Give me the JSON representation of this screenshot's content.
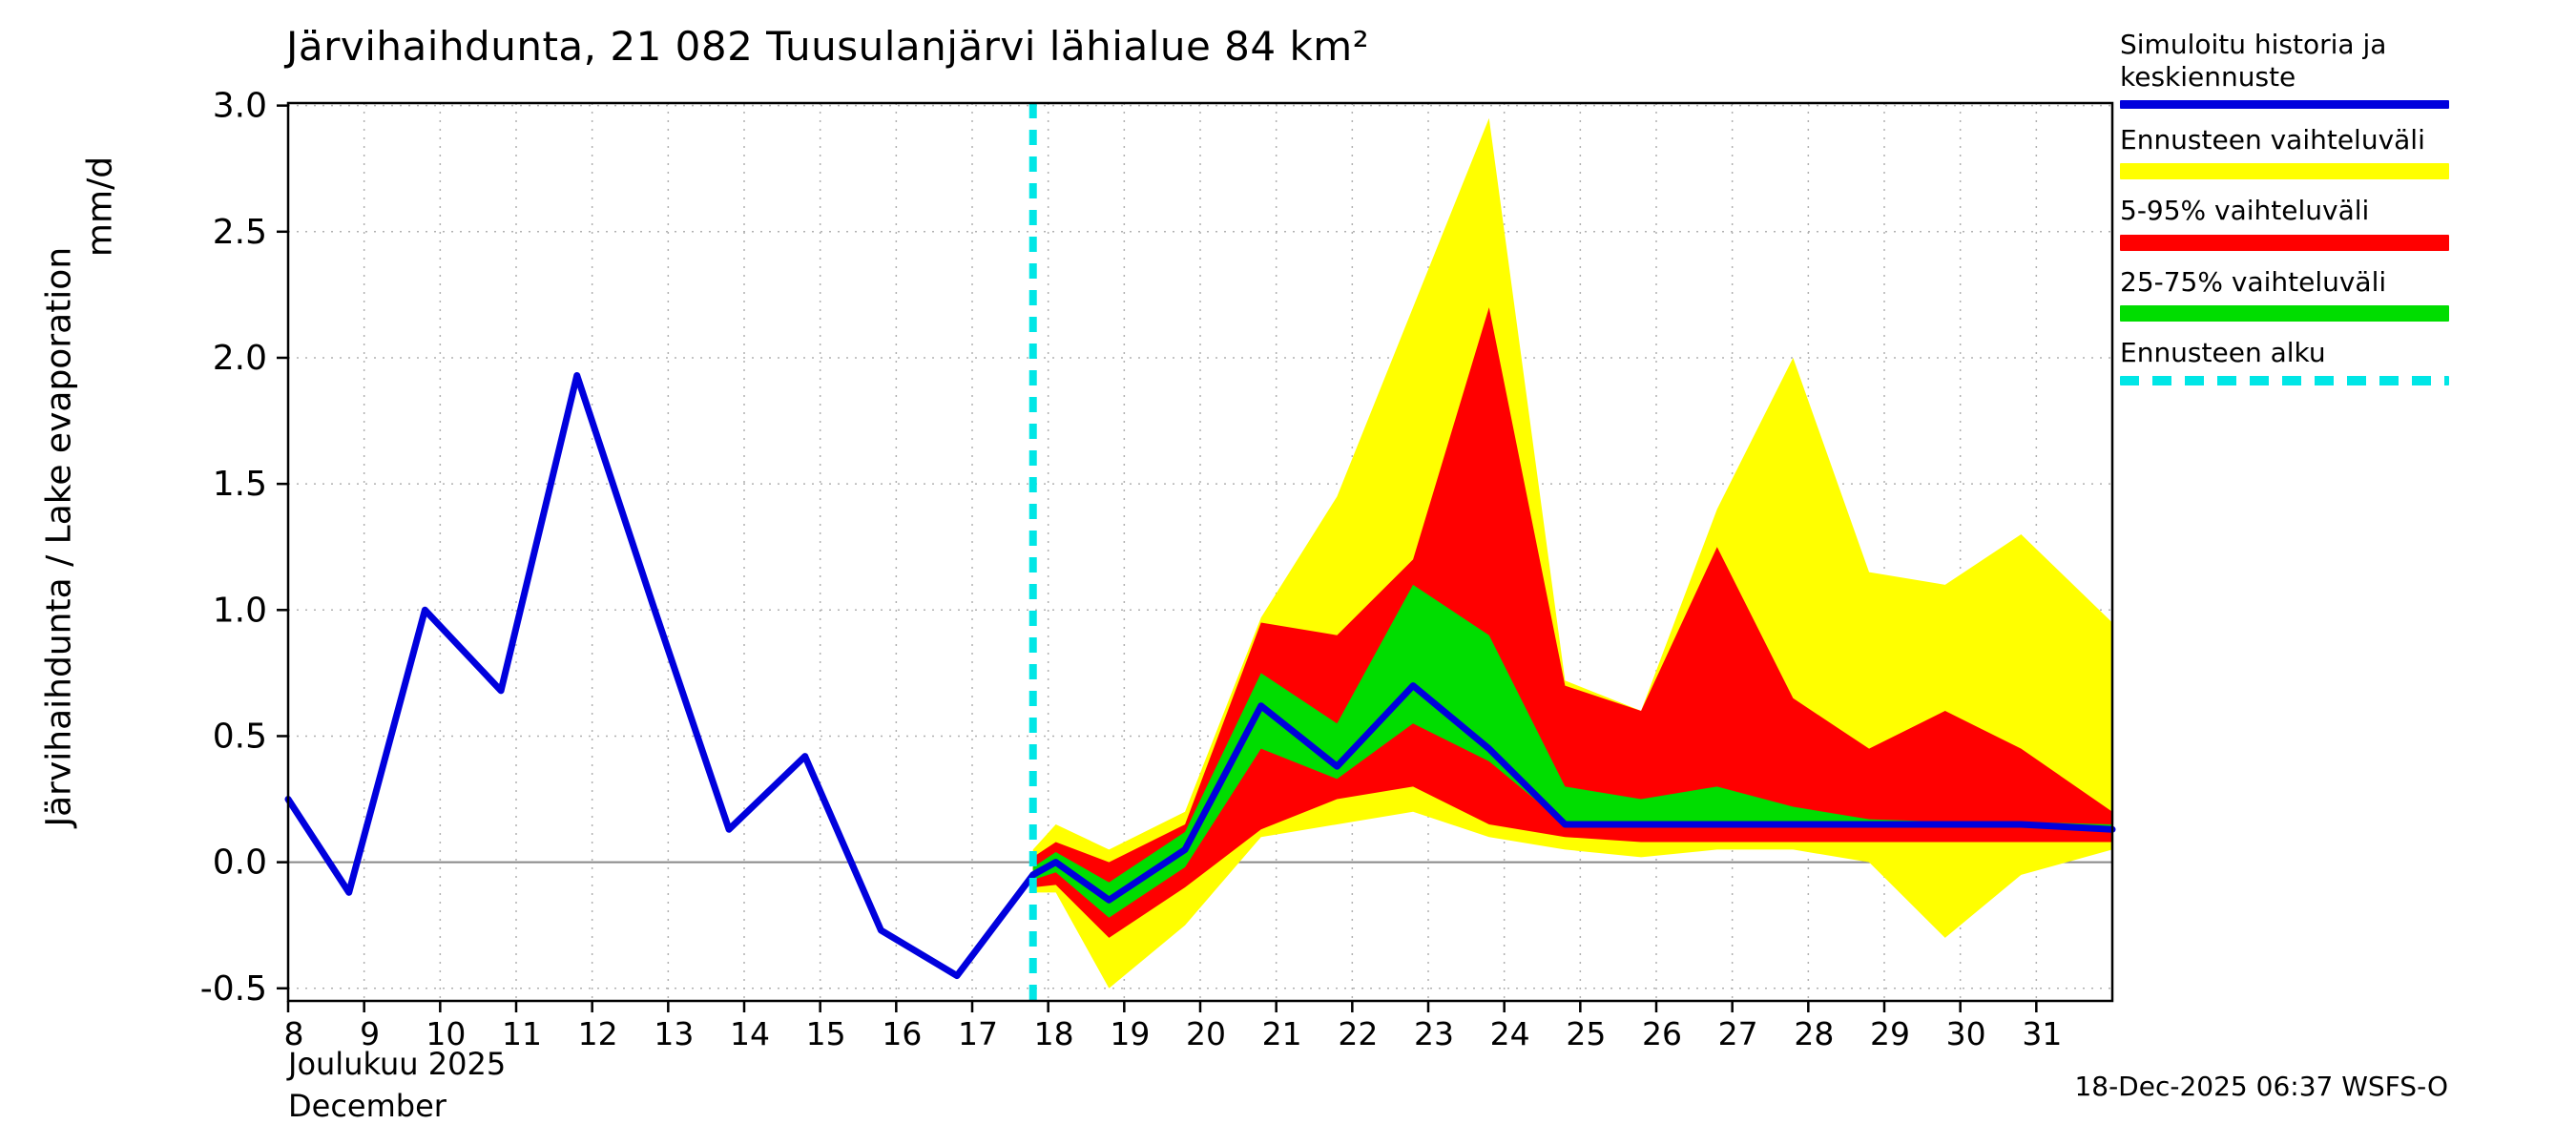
{
  "title": "Järvihaihdunta, 21 082 Tuusulanjärvi lähialue 84 km²",
  "y_axis_label": "Järvihaihdunta / Lake evaporation",
  "y_axis_unit": "mm/d",
  "footer": {
    "month_fi": "Joulukuu 2025",
    "month_en": "December",
    "timestamp": "18-Dec-2025 06:37 WSFS-O"
  },
  "legend": [
    {
      "label": "Simuloitu historia ja keskiennuste",
      "color": "#0000dd",
      "style": "line"
    },
    {
      "label": "Ennusteen vaihteluväli",
      "color": "#ffff00",
      "style": "band"
    },
    {
      "label": "5-95% vaihteluväli",
      "color": "#ff0000",
      "style": "band"
    },
    {
      "label": "25-75% vaihteluväli",
      "color": "#00dd00",
      "style": "band"
    },
    {
      "label": "Ennusteen alku",
      "color": "#00e6e6",
      "style": "dashed"
    }
  ],
  "chart_data": {
    "type": "line",
    "title": "Järvihaihdunta, 21 082 Tuusulanjärvi lähialue 84 km²",
    "xlabel": "Joulukuu 2025 / December",
    "ylabel": "Järvihaihdunta / Lake evaporation (mm/d)",
    "xlim": [
      8,
      32
    ],
    "ylim": [
      -0.5,
      3.0
    ],
    "x_ticks": [
      8,
      9,
      10,
      11,
      12,
      13,
      14,
      15,
      16,
      17,
      18,
      19,
      20,
      21,
      22,
      23,
      24,
      25,
      26,
      27,
      28,
      29,
      30,
      31
    ],
    "y_ticks": [
      -0.5,
      0.0,
      0.5,
      1.0,
      1.5,
      2.0,
      2.5,
      3.0
    ],
    "grid": true,
    "legend_position": "top-right",
    "forecast_start_x": 17.8,
    "colors": {
      "history_line": "#0000dd",
      "range_band": "#ffff00",
      "p5_95_band": "#ff0000",
      "p25_75_band": "#00dd00",
      "forecast_start_line": "#00e6e6",
      "grid": "#b0b0b0",
      "zero_line": "#888888"
    },
    "series": [
      {
        "name": "Ennusteen vaihteluväli",
        "type": "band",
        "color": "#ffff00",
        "x": [
          17.8,
          18.1,
          18.8,
          19.8,
          20.8,
          21.8,
          22.8,
          23.8,
          24.8,
          25.8,
          26.8,
          27.8,
          28.8,
          29.8,
          30.8,
          32.0
        ],
        "lower": [
          -0.12,
          -0.12,
          -0.5,
          -0.25,
          0.1,
          0.15,
          0.2,
          0.1,
          0.05,
          0.02,
          0.05,
          0.05,
          0.0,
          -0.3,
          -0.05,
          0.05
        ],
        "upper": [
          0.05,
          0.15,
          0.05,
          0.2,
          0.97,
          1.45,
          2.2,
          2.95,
          0.72,
          0.6,
          1.4,
          2.0,
          1.15,
          1.1,
          1.3,
          0.95
        ]
      },
      {
        "name": "5-95% vaihteluväli",
        "type": "band",
        "color": "#ff0000",
        "x": [
          17.8,
          18.1,
          18.8,
          19.8,
          20.8,
          21.8,
          22.8,
          23.8,
          24.8,
          25.8,
          26.8,
          27.8,
          28.8,
          29.8,
          30.8,
          32.0
        ],
        "lower": [
          -0.1,
          -0.09,
          -0.3,
          -0.1,
          0.13,
          0.25,
          0.3,
          0.15,
          0.1,
          0.08,
          0.08,
          0.08,
          0.08,
          0.08,
          0.08,
          0.08
        ],
        "upper": [
          0.02,
          0.08,
          0.0,
          0.15,
          0.95,
          0.9,
          1.2,
          2.2,
          0.7,
          0.6,
          1.25,
          0.65,
          0.45,
          0.6,
          0.45,
          0.2
        ]
      },
      {
        "name": "25-75% vaihteluväli",
        "type": "band",
        "color": "#00dd00",
        "x": [
          17.8,
          18.1,
          18.8,
          19.8,
          20.8,
          21.8,
          22.8,
          23.8,
          24.8,
          25.8,
          26.8,
          27.8,
          28.8,
          29.8,
          30.8,
          32.0
        ],
        "lower": [
          -0.07,
          -0.04,
          -0.22,
          -0.02,
          0.45,
          0.33,
          0.55,
          0.4,
          0.15,
          0.14,
          0.14,
          0.14,
          0.14,
          0.14,
          0.14,
          0.12
        ],
        "upper": [
          -0.02,
          0.04,
          -0.08,
          0.12,
          0.75,
          0.55,
          1.1,
          0.9,
          0.3,
          0.25,
          0.3,
          0.22,
          0.17,
          0.16,
          0.16,
          0.15
        ]
      },
      {
        "name": "Simuloitu historia ja keskiennuste",
        "type": "line",
        "color": "#0000dd",
        "x": [
          8.0,
          8.8,
          9.8,
          10.8,
          11.8,
          12.8,
          13.8,
          14.8,
          15.8,
          16.8,
          17.8,
          18.1,
          18.8,
          19.8,
          20.8,
          21.8,
          22.8,
          23.8,
          24.8,
          25.8,
          26.8,
          27.8,
          28.8,
          29.8,
          30.8,
          32.0
        ],
        "y": [
          0.25,
          -0.12,
          1.0,
          0.68,
          1.93,
          1.02,
          0.13,
          0.42,
          -0.27,
          -0.45,
          -0.05,
          0.0,
          -0.15,
          0.05,
          0.62,
          0.38,
          0.7,
          0.45,
          0.15,
          0.15,
          0.15,
          0.15,
          0.15,
          0.15,
          0.15,
          0.13
        ]
      }
    ]
  }
}
